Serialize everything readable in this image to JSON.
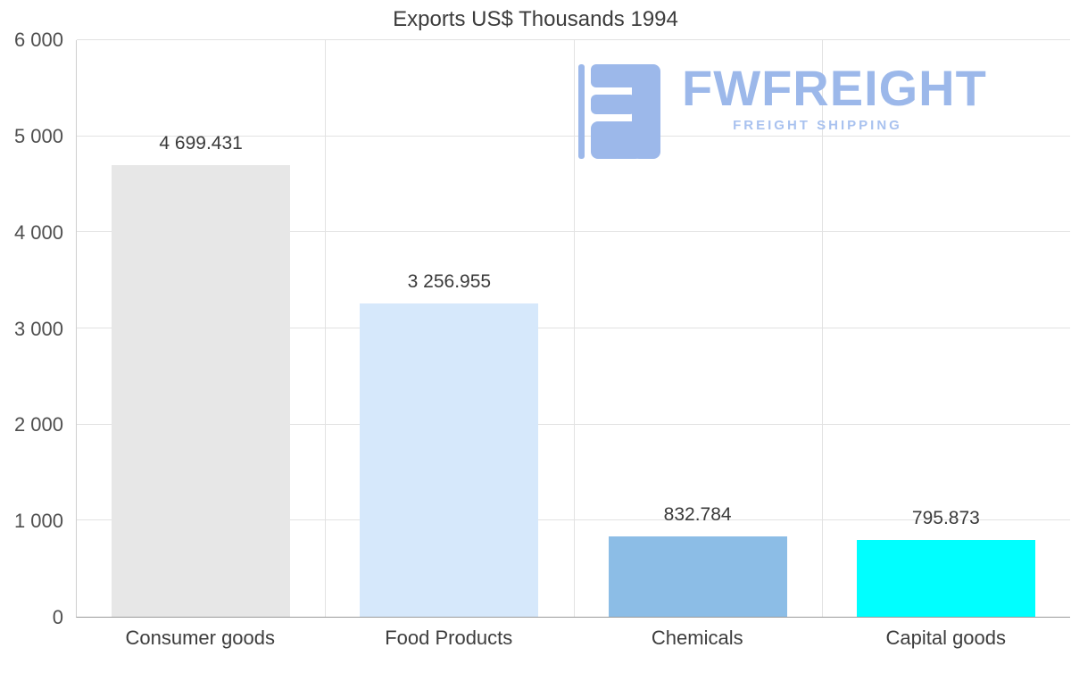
{
  "chart_data": {
    "type": "bar",
    "title": "Exports US$ Thousands 1994",
    "categories": [
      "Consumer goods",
      "Food Products",
      "Chemicals",
      "Capital goods"
    ],
    "values": [
      4699.431,
      3256.955,
      832.784,
      795.873
    ],
    "value_labels": [
      "4 699.431",
      "3 256.955",
      "832.784",
      "795.873"
    ],
    "bar_colors": [
      "#e7e7e7",
      "#d6e8fb",
      "#8cbde6",
      "#00ffff"
    ],
    "xlabel": "",
    "ylabel": "",
    "ylim": [
      0,
      6000
    ],
    "yticks": [
      0,
      1000,
      2000,
      3000,
      4000,
      5000,
      6000
    ],
    "ytick_labels": [
      "0",
      "1 000",
      "2 000",
      "3 000",
      "4 000",
      "5 000",
      "6 000"
    ],
    "grid": true,
    "legend": false
  },
  "watermark": {
    "brand": "FWFREIGHT",
    "tagline": "FREIGHT SHIPPING",
    "color": "#9cb8ea"
  }
}
